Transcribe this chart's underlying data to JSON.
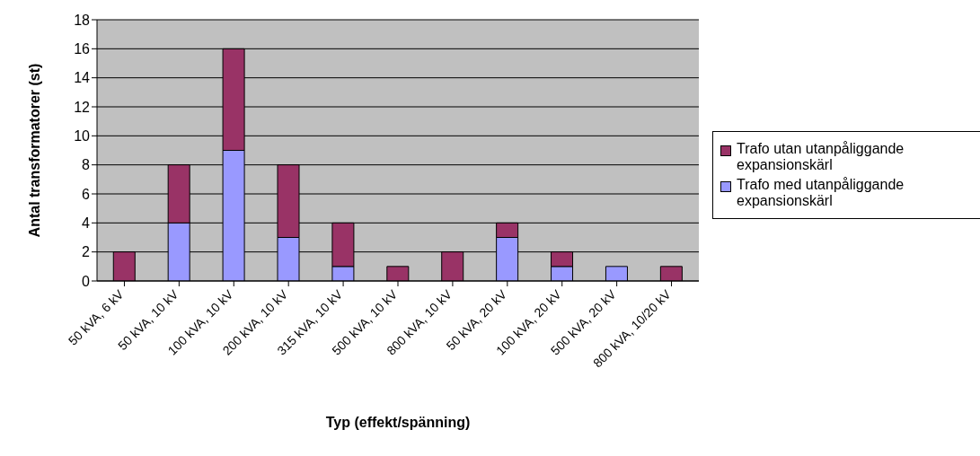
{
  "chart_data": {
    "type": "bar",
    "stacked": true,
    "xlabel": "Typ (effekt/spänning)",
    "ylabel": "Antal transformatorer (st)",
    "categories": [
      "50 kVA, 6 kV",
      "50 kVA, 10 kV",
      "100 kVA, 10 kV",
      "200 kVA, 10 kV",
      "315 kVA, 10 kV",
      "500 kVA, 10 kV",
      "800 kVA, 10 kV",
      "50 kVA, 20 kV",
      "100 kVA, 20 kV",
      "500 kVA, 20 kV",
      "800 kVA, 10/20 kV"
    ],
    "series": [
      {
        "name": "Trafo med utanpåliggande expansionskärl",
        "color": "#9999ff",
        "values": [
          0,
          4,
          9,
          3,
          1,
          0,
          0,
          3,
          1,
          1,
          0
        ]
      },
      {
        "name": "Trafo utan utanpåliggande expansionskärl",
        "color": "#993366",
        "values": [
          2,
          4,
          7,
          5,
          3,
          1,
          2,
          1,
          1,
          0,
          1
        ]
      }
    ],
    "ylim": [
      0,
      18
    ],
    "yticks": [
      0,
      2,
      4,
      6,
      8,
      10,
      12,
      14,
      16,
      18
    ],
    "grid": "y",
    "legend": "right"
  }
}
